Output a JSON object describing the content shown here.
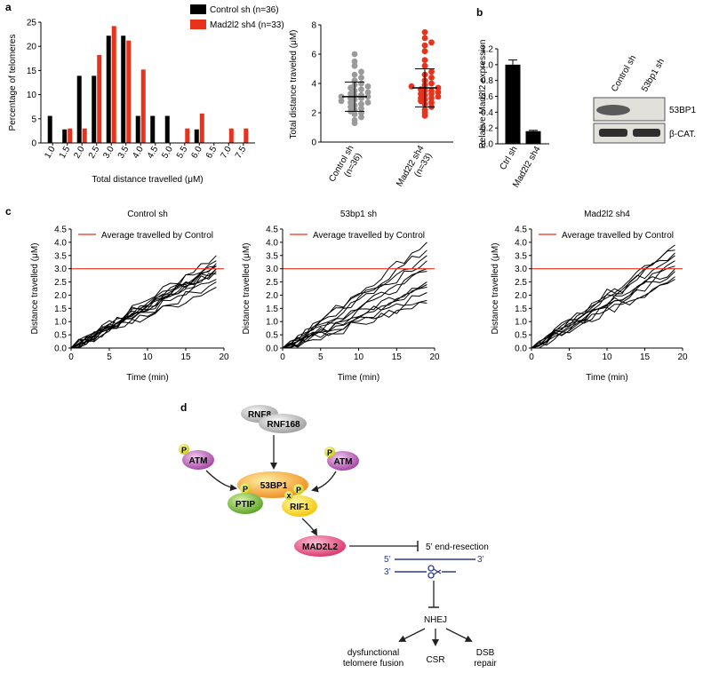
{
  "panel_labels": {
    "a": "a",
    "b": "b",
    "c": "c",
    "d": "d"
  },
  "colors": {
    "control": "#000000",
    "mad2l2": "#e8321c",
    "scatter_ctrl": "#9a9a9a",
    "ref_line": "#e8321c",
    "dna": "#2b3a8c"
  },
  "chart_data": [
    {
      "id": "histogram",
      "type": "bar",
      "categories": [
        "1.0",
        "1.5",
        "2.0",
        "2.5",
        "3.0",
        "3.5",
        "4.0",
        "4.5",
        "5.0",
        "5.5",
        "6.0",
        "6.5",
        "7.0",
        "7.5"
      ],
      "series": [
        {
          "name": "Control sh (n=36)",
          "values": [
            5.6,
            2.8,
            13.9,
            13.9,
            22.2,
            22.2,
            5.6,
            5.6,
            5.6,
            0,
            2.8,
            0,
            0,
            0
          ]
        },
        {
          "name": "Mad2l2 sh4 (n=33)",
          "values": [
            0,
            3.0,
            3.0,
            18.2,
            24.2,
            21.2,
            15.2,
            0,
            0,
            3.0,
            6.1,
            0,
            3.0,
            3.0
          ]
        }
      ],
      "ylabel": "Percentage of telomeres",
      "xlabel": "Total distance travelled (μM)",
      "ylim": [
        0,
        25
      ],
      "yticks": [
        "0",
        "5",
        "10",
        "15",
        "20",
        "25"
      ]
    },
    {
      "id": "scatter",
      "type": "scatter",
      "categories": [
        "Control sh\n(n=36)",
        "Mad2l2 sh4\n(n=33)"
      ],
      "category_lines": [
        [
          "Control sh",
          "(n=36)"
        ],
        [
          "Mad2l2 sh4",
          "(n=33)"
        ]
      ],
      "ylabel": "Total distance traveled (μM)",
      "ylim": [
        0,
        8
      ],
      "yticks": [
        "0",
        "2",
        "4",
        "6",
        "8"
      ],
      "series": [
        {
          "name": "Control sh",
          "mean": 3.1,
          "sd_low": 2.1,
          "sd_high": 4.1,
          "values": [
            1.3,
            1.5,
            1.7,
            1.9,
            2.0,
            2.1,
            2.2,
            2.3,
            2.4,
            2.5,
            2.6,
            2.7,
            2.7,
            2.8,
            2.9,
            3.0,
            3.0,
            3.1,
            3.1,
            3.2,
            3.2,
            3.3,
            3.4,
            3.5,
            3.6,
            3.7,
            3.8,
            3.9,
            4.0,
            4.2,
            4.4,
            4.6,
            4.8,
            5.2,
            5.5,
            6.0
          ]
        },
        {
          "name": "Mad2l2 sh4",
          "mean": 3.7,
          "sd_low": 2.4,
          "sd_high": 5.0,
          "values": [
            1.8,
            2.0,
            2.2,
            2.4,
            2.6,
            2.7,
            2.8,
            2.9,
            3.0,
            3.0,
            3.1,
            3.2,
            3.3,
            3.3,
            3.4,
            3.5,
            3.5,
            3.6,
            3.7,
            3.8,
            3.9,
            4.0,
            4.2,
            4.4,
            4.6,
            4.8,
            5.2,
            5.6,
            6.2,
            6.6,
            6.8,
            7.1,
            7.5
          ]
        }
      ]
    },
    {
      "id": "expression",
      "type": "bar",
      "categories": [
        "Ctrl sh",
        "Mad2l2 sh4"
      ],
      "values": [
        1.0,
        0.16
      ],
      "errors": [
        0.06,
        0.01
      ],
      "ylabel": "Relative Mad2l2 expression",
      "ylim": [
        0,
        1.2
      ],
      "yticks": [
        "0.0",
        "0.2",
        "0.4",
        "0.6",
        "0.8",
        "1.0",
        "1.2"
      ]
    },
    {
      "id": "trajectories",
      "type": "line",
      "xlabel": "Time (min)",
      "ylabel": "Distance travelled (μM)",
      "xlim": [
        0,
        20
      ],
      "ylim": [
        0,
        4.5
      ],
      "xticks": [
        "0",
        "5",
        "10",
        "15",
        "20"
      ],
      "yticks": [
        "0.0",
        "0.5",
        "1.0",
        "1.5",
        "2.0",
        "2.5",
        "3.0",
        "3.5",
        "4.0",
        "4.5"
      ],
      "reference": {
        "label": "Average travelled by Control",
        "y": 3.0
      },
      "panels": [
        {
          "title": "Control sh",
          "end_values": [
            3.5,
            3.3,
            3.2,
            3.1,
            3.1,
            3.0,
            3.0,
            2.9,
            2.8,
            2.6,
            2.5,
            2.3
          ]
        },
        {
          "title": "53bp1 sh",
          "end_values": [
            4.0,
            3.7,
            3.5,
            3.3,
            3.0,
            2.9,
            2.5,
            2.4,
            2.3,
            2.1,
            1.8,
            1.7
          ]
        },
        {
          "title": "Mad2l2 sh4",
          "end_values": [
            3.9,
            3.7,
            3.6,
            3.5,
            3.3,
            3.1,
            3.0,
            2.9,
            2.7,
            2.6
          ]
        }
      ]
    }
  ],
  "western": {
    "lanes": [
      "Control sh",
      "53bp1 sh"
    ],
    "bands": [
      "53BP1",
      "β-CAT."
    ]
  },
  "diagram": {
    "rnf8": "RNF8",
    "rnf168": "RNF168",
    "atm": "ATM",
    "p": "P",
    "p53bp1": "53BP1",
    "ptip": "PTIP",
    "rif1": "RIF1",
    "x": "x",
    "mad2l2": "MAD2L2",
    "resection": "5’ end-resection",
    "five": "5’",
    "three": "3’",
    "nhej": "NHEJ",
    "outcome1_l1": "dysfunctional",
    "outcome1_l2": "telomere fusion",
    "outcome2": "CSR",
    "outcome3_l1": "DSB",
    "outcome3_l2": "repair"
  }
}
